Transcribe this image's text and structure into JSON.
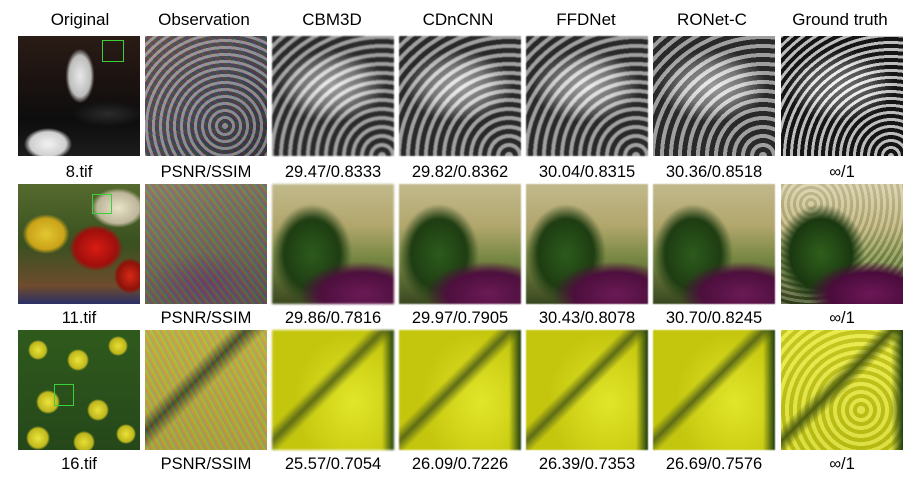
{
  "headers": [
    "Original",
    "Observation",
    "CBM3D",
    "CDnCNN",
    "FFDNet",
    "RONet-C",
    "Ground truth"
  ],
  "rows": [
    {
      "file": "8.tif",
      "label": "PSNR/SSIM",
      "scores": [
        "29.47/0.8333",
        "29.82/0.8362",
        "30.04/0.8315",
        "30.36/0.8518"
      ],
      "gt": "∞/1"
    },
    {
      "file": "11.tif",
      "label": "PSNR/SSIM",
      "scores": [
        "29.86/0.7816",
        "29.97/0.7905",
        "30.43/0.8078",
        "30.70/0.8245"
      ],
      "gt": "∞/1"
    },
    {
      "file": "16.tif",
      "label": "PSNR/SSIM",
      "scores": [
        "25.57/0.7054",
        "26.09/0.7226",
        "26.39/0.7353",
        "26.69/0.7576"
      ],
      "gt": "∞/1"
    }
  ],
  "colors": {
    "zoom_box": "#3ad13a"
  }
}
